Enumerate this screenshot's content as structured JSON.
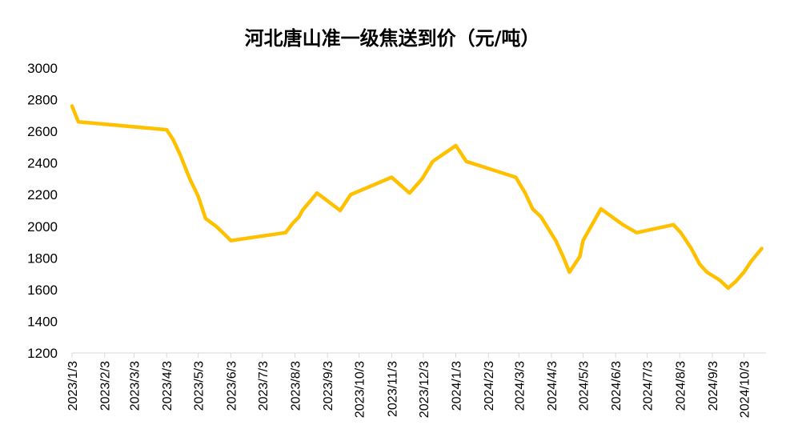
{
  "chart_data": {
    "type": "line",
    "title": "河北唐山准一级焦送到价（元/吨）",
    "xlabel": "",
    "ylabel": "",
    "ylim": [
      1200,
      3000
    ],
    "yticks": [
      1200,
      1400,
      1600,
      1800,
      2000,
      2200,
      2400,
      2600,
      2800,
      3000
    ],
    "x_start": "2023/1/3",
    "x_end": "2024/10/24",
    "x_tick_labels": [
      "2023/1/3",
      "2023/2/3",
      "2023/3/3",
      "2023/4/3",
      "2023/5/3",
      "2023/6/3",
      "2023/7/3",
      "2023/8/3",
      "2023/9/3",
      "2023/10/3",
      "2023/11/3",
      "2023/12/3",
      "2024/1/3",
      "2024/2/3",
      "2024/3/3",
      "2024/4/3",
      "2024/5/3",
      "2024/6/3",
      "2024/7/3",
      "2024/8/3",
      "2024/9/3",
      "2024/10/3"
    ],
    "grid": false,
    "legend": "none",
    "line_color": "#FFC000",
    "series": [
      {
        "x": [
          "2023/1/3",
          "2023/1/9",
          "2023/4/3",
          "2023/4/9",
          "2023/4/16",
          "2023/4/25",
          "2023/5/3",
          "2023/5/10",
          "2023/5/20",
          "2023/5/28",
          "2023/6/3",
          "2023/7/25",
          "2023/8/1",
          "2023/8/7",
          "2023/8/10",
          "2023/8/24",
          "2023/9/15",
          "2023/9/25",
          "2023/11/3",
          "2023/11/20",
          "2023/12/2",
          "2023/12/12",
          "2024/1/3",
          "2024/1/13",
          "2024/2/29",
          "2024/3/9",
          "2024/3/16",
          "2024/3/24",
          "2024/4/7",
          "2024/4/14",
          "2024/4/20",
          "2024/4/30",
          "2024/5/3",
          "2024/5/20",
          "2024/6/10",
          "2024/6/23",
          "2024/7/28",
          "2024/8/4",
          "2024/8/9",
          "2024/8/14",
          "2024/8/18",
          "2024/8/22",
          "2024/8/29",
          "2024/9/10",
          "2024/9/18",
          "2024/9/25",
          "2024/10/3",
          "2024/10/10",
          "2024/10/20"
        ],
        "values": [
          2760,
          2660,
          2610,
          2550,
          2450,
          2300,
          2190,
          2050,
          2000,
          1950,
          1910,
          1960,
          2020,
          2060,
          2100,
          2210,
          2100,
          2200,
          2310,
          2210,
          2300,
          2410,
          2510,
          2410,
          2310,
          2210,
          2110,
          2060,
          1910,
          1810,
          1710,
          1810,
          1910,
          2110,
          2010,
          1960,
          2010,
          1960,
          1910,
          1860,
          1810,
          1760,
          1710,
          1660,
          1610,
          1650,
          1710,
          1780,
          1860
        ]
      }
    ]
  }
}
